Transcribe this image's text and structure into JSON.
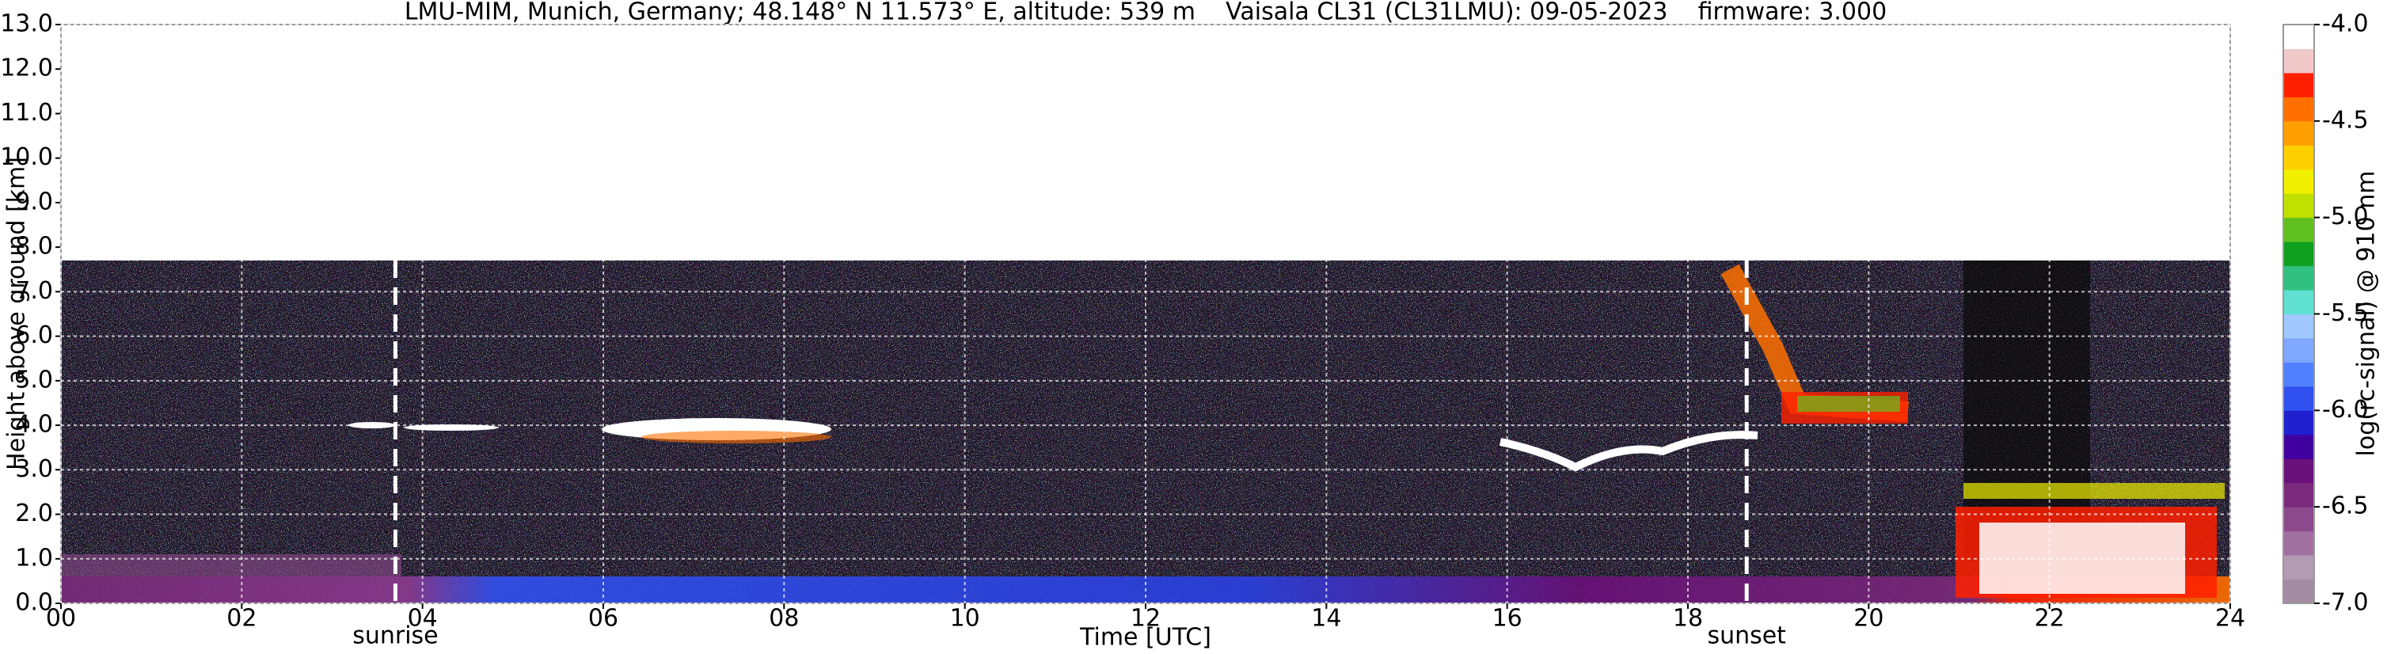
{
  "chart_data": {
    "type": "heatmap",
    "title": "LMU-MIM, Munich, Germany; 48.148° N 11.573° E, altitude: 539 m    Vaisala CL31 (CL31LMU): 09-05-2023    firmware: 3.000",
    "xlabel": "Time [UTC]",
    "ylabel": "Height above ground [km]",
    "colorbar_label": "log(rc-signal) @ 910 nm",
    "xlim": [
      0,
      24
    ],
    "xticks": [
      {
        "value": 0,
        "label": "00"
      },
      {
        "value": 2,
        "label": "02"
      },
      {
        "value": 4,
        "label": "04"
      },
      {
        "value": 6,
        "label": "06"
      },
      {
        "value": 8,
        "label": "08"
      },
      {
        "value": 10,
        "label": "10"
      },
      {
        "value": 12,
        "label": "12"
      },
      {
        "value": 14,
        "label": "14"
      },
      {
        "value": 16,
        "label": "16"
      },
      {
        "value": 18,
        "label": "18"
      },
      {
        "value": 20,
        "label": "20"
      },
      {
        "value": 22,
        "label": "22"
      },
      {
        "value": 24,
        "label": "24"
      }
    ],
    "ylim": [
      0,
      13
    ],
    "yticks": [
      {
        "value": 0,
        "label": "0.0"
      },
      {
        "value": 1,
        "label": "1.0"
      },
      {
        "value": 2,
        "label": "2.0"
      },
      {
        "value": 3,
        "label": "3.0"
      },
      {
        "value": 4,
        "label": "4.0"
      },
      {
        "value": 5,
        "label": "5.0"
      },
      {
        "value": 6,
        "label": "6.0"
      },
      {
        "value": 7,
        "label": "7.0"
      },
      {
        "value": 8,
        "label": "8.0"
      },
      {
        "value": 9,
        "label": "9.0"
      },
      {
        "value": 10,
        "label": "10.0"
      },
      {
        "value": 11,
        "label": "11.0"
      },
      {
        "value": 12,
        "label": "12.0"
      },
      {
        "value": 13,
        "label": "13.0"
      }
    ],
    "clim": [
      -7,
      -4
    ],
    "cticks": [
      {
        "value": -7,
        "label": "-7.0"
      },
      {
        "value": -6.5,
        "label": "-6.5"
      },
      {
        "value": -6,
        "label": "-6.0"
      },
      {
        "value": -5.5,
        "label": "-5.5"
      },
      {
        "value": -5,
        "label": "-5.0"
      },
      {
        "value": -4.5,
        "label": "-4.5"
      },
      {
        "value": -4,
        "label": "-4.0"
      }
    ],
    "colormap": [
      "#a38ca3",
      "#b39bb3",
      "#a070a0",
      "#8c4a8c",
      "#7a2a7a",
      "#6a107a",
      "#4000a0",
      "#2020d0",
      "#3050f0",
      "#5080ff",
      "#80a8ff",
      "#a0c8ff",
      "#60e0d0",
      "#30c080",
      "#10a020",
      "#60c020",
      "#c0e000",
      "#f0f000",
      "#ffd000",
      "#ffa000",
      "#ff7000",
      "#ff2000",
      "#f0c8c8",
      "#ffffff"
    ],
    "grid": true,
    "vlines": [
      {
        "x": 3.7,
        "label": "sunrise"
      },
      {
        "x": 18.65,
        "label": "sunset"
      }
    ]
  }
}
